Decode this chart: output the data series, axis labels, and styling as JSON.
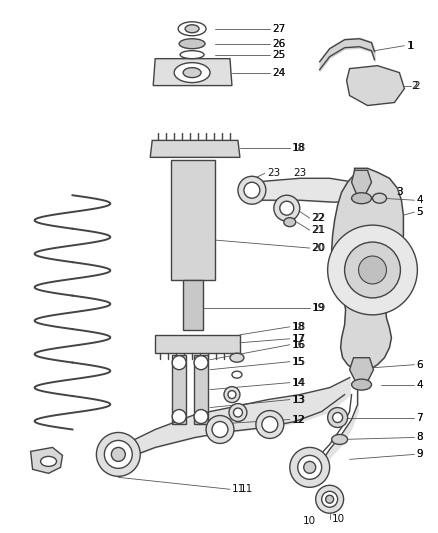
{
  "background_color": "#ffffff",
  "line_color": "#444444",
  "callout_color": "#555555",
  "text_color": "#111111",
  "fig_width": 4.38,
  "fig_height": 5.33,
  "dpi": 100
}
